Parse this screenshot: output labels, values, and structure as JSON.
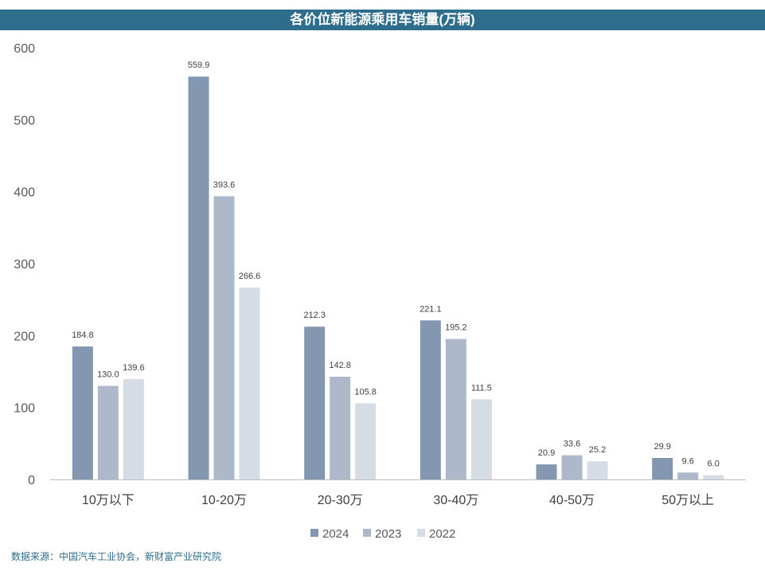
{
  "chart_data": {
    "type": "bar",
    "title": "各价位新能源乘用车销量(万辆)",
    "categories": [
      "10万以下",
      "10-20万",
      "20-30万",
      "30-40万",
      "40-50万",
      "50万以上"
    ],
    "series": [
      {
        "name": "2024",
        "values": [
          184.8,
          559.9,
          212.3,
          221.1,
          20.9,
          29.9
        ],
        "color": "#8497b0"
      },
      {
        "name": "2023",
        "values": [
          130.0,
          393.6,
          142.8,
          195.2,
          33.6,
          9.6
        ],
        "color": "#adb9ca"
      },
      {
        "name": "2022",
        "values": [
          139.6,
          266.6,
          105.8,
          111.5,
          25.2,
          6.0
        ],
        "color": "#d6dce4"
      }
    ],
    "ylim": [
      0,
      600
    ],
    "yticks": [
      0,
      100,
      200,
      300,
      400,
      500,
      600
    ],
    "grid": false,
    "legend_position": "bottom"
  },
  "source_text": "数据来源：中国汽车工业协会，新财富产业研究院"
}
